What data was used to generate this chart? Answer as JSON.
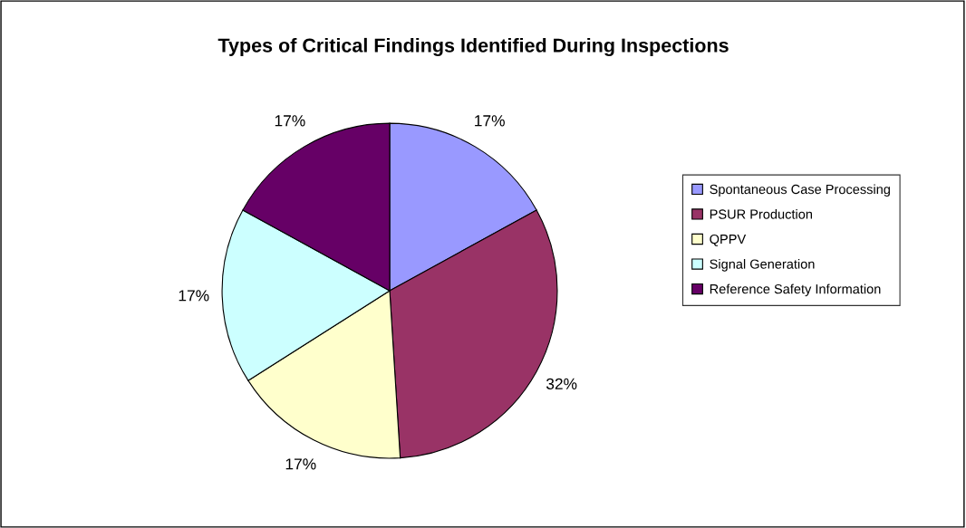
{
  "chart_data": {
    "type": "pie",
    "title": "Types of Critical Findings Identified During Inspections",
    "categories": [
      "Spontaneous Case Processing",
      "PSUR Production",
      "QPPV",
      "Signal Generation",
      "Reference Safety Information"
    ],
    "values": [
      17,
      32,
      17,
      17,
      17
    ],
    "colors": [
      "#9999ff",
      "#993366",
      "#ffffcc",
      "#ccffff",
      "#660066"
    ],
    "value_labels": [
      "17%",
      "32%",
      "17%",
      "17%",
      "17%"
    ],
    "legend": "right"
  }
}
